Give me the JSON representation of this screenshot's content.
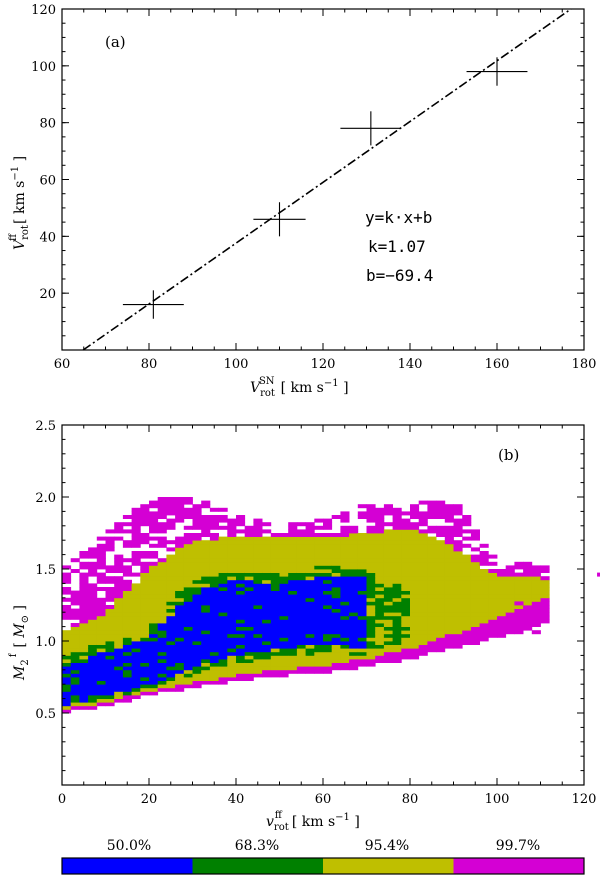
{
  "chart_data": [
    {
      "type": "scatter",
      "panel_label": "(a)",
      "x": [
        81,
        110,
        131,
        160
      ],
      "y": [
        16,
        46,
        78,
        98
      ],
      "x_err": [
        7,
        6,
        7,
        7
      ],
      "y_err": [
        5,
        6,
        6,
        5
      ],
      "xlim": [
        60,
        180
      ],
      "ylim": [
        0,
        120
      ],
      "xticks": [
        60,
        80,
        100,
        120,
        140,
        160,
        180
      ],
      "yticks": [
        20,
        40,
        60,
        80,
        100,
        120
      ],
      "xlabel": "V_rot^SN [ km s^-1 ]",
      "ylabel": "V_rot^ff [ km s^-1 ]",
      "fit": {
        "k": 1.07,
        "b": -69.4,
        "style": "dash-dot"
      },
      "annotations": [
        "y=k·x+b",
        "k=1.07",
        "b=−69.4"
      ]
    },
    {
      "type": "heatmap",
      "panel_label": "(b)",
      "xlim": [
        0,
        120
      ],
      "ylim": [
        0,
        2.5
      ],
      "xticks": [
        0,
        20,
        40,
        60,
        80,
        100,
        120
      ],
      "yticks": [
        0.5,
        1.0,
        1.5,
        2.0,
        2.5
      ],
      "xlabel": "v_rot^ff [ km s^-1 ]",
      "ylabel": "M_2^f [ M_sun ]",
      "cell_width": 2,
      "cell_height": 0.025,
      "levels": [
        {
          "label": "50.0%",
          "color": "#0000ff"
        },
        {
          "label": "68.3%",
          "color": "#008000"
        },
        {
          "label": "95.4%",
          "color": "#bfbf00"
        },
        {
          "label": "99.7%",
          "color": "#d400d4"
        }
      ],
      "profiles": {
        "v": [
          0,
          10,
          20,
          30,
          40,
          50,
          60,
          70,
          80,
          90,
          100,
          110,
          112
        ],
        "lower_997": [
          0.5,
          0.55,
          0.62,
          0.68,
          0.72,
          0.76,
          0.78,
          0.82,
          0.88,
          0.95,
          1.02,
          1.1,
          1.15
        ],
        "lower_954": [
          0.52,
          0.58,
          0.65,
          0.71,
          0.76,
          0.8,
          0.83,
          0.88,
          0.95,
          1.05,
          1.15,
          1.28,
          1.3
        ],
        "upper_954": [
          1.05,
          1.2,
          1.5,
          1.7,
          1.72,
          1.72,
          1.72,
          1.75,
          1.78,
          1.65,
          1.45,
          1.45,
          1.4
        ],
        "upper_997": [
          1.5,
          1.75,
          2.0,
          2.0,
          1.88,
          1.8,
          1.85,
          1.95,
          1.95,
          2.0,
          1.55,
          1.55,
          1.52
        ],
        "blob_lo": [
          0.55,
          0.62,
          0.7,
          0.82,
          0.9,
          0.95,
          0.98,
          0.95,
          null,
          null,
          null,
          null,
          null
        ],
        "blob_hi": [
          0.85,
          0.92,
          1.02,
          1.35,
          1.42,
          1.4,
          1.45,
          1.45,
          null,
          null,
          null,
          null,
          null
        ],
        "green_lo": [
          0.53,
          0.6,
          0.67,
          0.77,
          0.85,
          0.88,
          0.9,
          0.9,
          1.02,
          null,
          null,
          null,
          null
        ],
        "green_hi": [
          0.9,
          1.0,
          1.08,
          1.45,
          1.48,
          1.47,
          1.52,
          1.5,
          1.28,
          null,
          null,
          null,
          null
        ]
      },
      "outliers": [
        [
          123,
          1.45
        ],
        [
          108,
          1.05
        ],
        [
          104,
          1.25
        ]
      ]
    }
  ]
}
